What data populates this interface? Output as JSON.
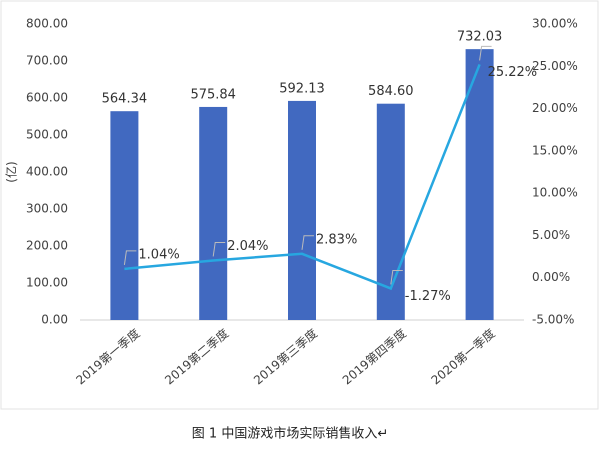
{
  "chart_data": {
    "type": "bar-line",
    "title": "图 1  中国游戏市场实际销售收入↵",
    "y_label": "(亿)",
    "categories": [
      "2019第一季度",
      "2019第二季度",
      "2019第三季度",
      "2019第四季度",
      "2020第一季度"
    ],
    "series": [
      {
        "type": "bar",
        "color": "#4169c0",
        "values": [
          564.34,
          575.84,
          592.13,
          584.6,
          732.03
        ],
        "value_labels": [
          "564.34",
          "575.84",
          "592.13",
          "584.60",
          "732.03"
        ]
      },
      {
        "type": "line",
        "axis": "y2",
        "color": "#27a7e0",
        "values": [
          1.04,
          2.04,
          2.83,
          -1.27,
          25.22
        ],
        "value_labels": [
          "1.04%",
          "2.04%",
          "2.83%",
          "-1.27%",
          "25.22%"
        ]
      }
    ],
    "ylim": [
      0,
      800
    ],
    "yticks": [
      {
        "value": 0,
        "label": "0.00"
      },
      {
        "value": 100,
        "label": "100.00"
      },
      {
        "value": 200,
        "label": "200.00"
      },
      {
        "value": 300,
        "label": "300.00"
      },
      {
        "value": 400,
        "label": "400.00"
      },
      {
        "value": 500,
        "label": "500.00"
      },
      {
        "value": 600,
        "label": "600.00"
      },
      {
        "value": 700,
        "label": "700.00"
      },
      {
        "value": 800,
        "label": "800.00"
      }
    ],
    "y2lim": [
      -5,
      30
    ],
    "y2ticks": [
      {
        "value": -5,
        "label": "-5.00%"
      },
      {
        "value": 0,
        "label": "0.00%"
      },
      {
        "value": 5,
        "label": "5.00%"
      },
      {
        "value": 10,
        "label": "10.00%"
      },
      {
        "value": 15,
        "label": "15.00%"
      },
      {
        "value": 20,
        "label": "20.00%"
      },
      {
        "value": 25,
        "label": "25.00%"
      },
      {
        "value": 30,
        "label": "30.00%"
      }
    ],
    "grid": false
  }
}
